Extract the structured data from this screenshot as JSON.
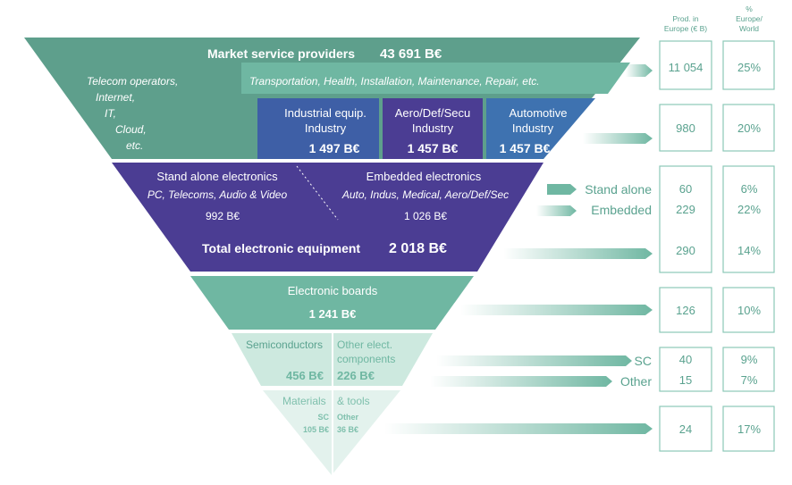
{
  "colors": {
    "teal_dark": "#5e9f8c",
    "teal_mid": "#6fb7a2",
    "teal_light": "#a8d4c6",
    "teal_pale": "#dcefe8",
    "purple": "#4b3d93",
    "purple_mid": "#5646a2",
    "blue_seg": "#3e5fa6",
    "arrow": "#6fb7a2",
    "text_teal": "#5aa28f"
  },
  "headers": {
    "prod": [
      "Prod. in",
      "Europe (€ B)"
    ],
    "pct": [
      "%",
      "Europe/",
      "World"
    ]
  },
  "market": {
    "title": "Market service providers",
    "value": "43 691 B€",
    "telecom_lines": [
      "Telecom operators,",
      "Internet,",
      "IT,",
      "Cloud,",
      "etc."
    ],
    "services": "Transportation, Health, Installation, Maintenance, Repair, etc.",
    "industries": [
      {
        "label": [
          "Industrial equip.",
          "Industry"
        ],
        "value": "1 497 B€"
      },
      {
        "label": [
          "Aero/Def/Secu",
          "Industry"
        ],
        "value": "1 457 B€"
      },
      {
        "label": [
          "Automotive",
          "Industry"
        ],
        "value": "1 457 B€"
      }
    ]
  },
  "electronics": {
    "standalone_title": "Stand alone electronics",
    "standalone_sub": "PC, Telecoms, Audio & Video",
    "standalone_value": "992 B€",
    "embedded_title": "Embedded electronics",
    "embedded_sub": "Auto, Indus, Medical, Aero/Def/Sec",
    "embedded_value": "1 026 B€",
    "total_label": "Total electronic equipment",
    "total_value": "2 018 B€"
  },
  "boards": {
    "title": "Electronic boards",
    "value": "1 241 B€"
  },
  "components": {
    "semi_label": "Semiconductors",
    "semi_value": "456 B€",
    "other_label": [
      "Other elect.",
      "components"
    ],
    "other_value": "226 B€"
  },
  "materials": {
    "left_label": "Materials",
    "right_label": "& tools",
    "sc_label": "SC",
    "sc_value": "105 B€",
    "other_label": "Other",
    "other_value": "36 B€"
  },
  "side_labels": {
    "stand_alone": "Stand alone",
    "embedded": "Embedded",
    "sc": "SC",
    "other": "Other"
  },
  "rows": [
    {
      "prod": [
        "11 054"
      ],
      "pct": [
        "25%"
      ]
    },
    {
      "prod": [
        "980"
      ],
      "pct": [
        "20%"
      ]
    },
    {
      "prod": [
        "60",
        "229",
        "290"
      ],
      "pct": [
        "6%",
        "22%",
        "14%"
      ]
    },
    {
      "prod": [
        "126"
      ],
      "pct": [
        "10%"
      ]
    },
    {
      "prod": [
        "40",
        "15"
      ],
      "pct": [
        "9%",
        "7%"
      ]
    },
    {
      "prod": [
        "24"
      ],
      "pct": [
        "17%"
      ]
    }
  ]
}
